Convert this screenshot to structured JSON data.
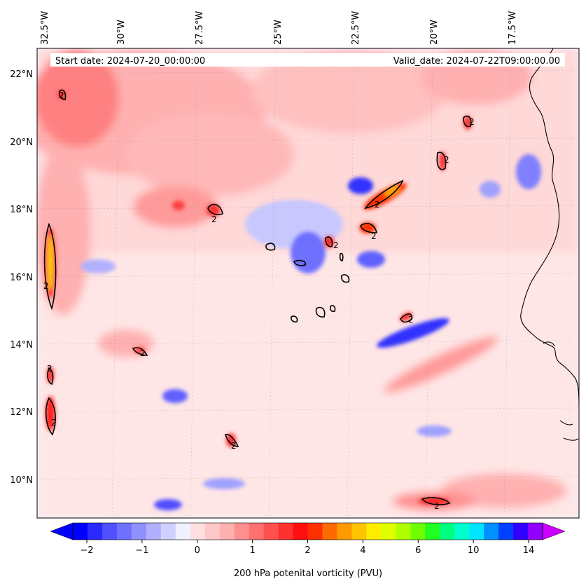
{
  "header": {
    "start_date": "Start date: 2024-07-20_00:00:00",
    "valid_date": "Valid_date: 2024-07-22T09:00:00.00"
  },
  "map": {
    "lon_labels": [
      "32.5°W",
      "30°W",
      "27.5°W",
      "25°W",
      "22.5°W",
      "20°W",
      "17.5°W"
    ],
    "lat_labels": [
      "22°N",
      "20°N",
      "18°N",
      "16°N",
      "14°N",
      "12°N",
      "10°N"
    ],
    "contour_label": "2",
    "colors": {
      "ocean_background": "#f0f0ff",
      "coastline": "#000000",
      "contour": "#000000"
    }
  },
  "colorbar": {
    "title": "200 hPa potenital vorticity (PVU)",
    "tick_labels": [
      "−2",
      "−1",
      "0",
      "1",
      "2",
      "4",
      "6",
      "10",
      "14"
    ],
    "colors": [
      "#0000ff",
      "#2a2aff",
      "#5050ff",
      "#7070ff",
      "#9090ff",
      "#b0b0ff",
      "#d0d0ff",
      "#f0f0ff",
      "#ffe0e0",
      "#ffc8c8",
      "#ffb0b0",
      "#ff9090",
      "#ff7070",
      "#ff5050",
      "#ff3030",
      "#ff1010",
      "#ff3000",
      "#ff6a00",
      "#ff9a00",
      "#ffc400",
      "#ffee00",
      "#e0ff00",
      "#b0ff00",
      "#70ff00",
      "#20ff20",
      "#00ff80",
      "#00ffcc",
      "#00e4ff",
      "#0090ff",
      "#0040ff",
      "#3000ff",
      "#9000ff"
    ],
    "extend_low": "#0000ff",
    "extend_high": "#cc00ff"
  }
}
